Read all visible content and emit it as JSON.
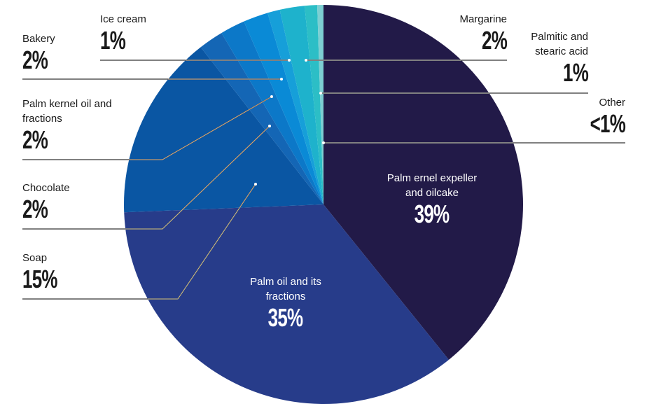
{
  "chart_data": {
    "type": "pie",
    "categories": [
      "Palm ernel expeller and oilcake",
      "Palm oil and its fractions",
      "Soap",
      "Chocolate",
      "Palm kernel oil and fractions",
      "Bakery",
      "Ice cream",
      "Margarine",
      "Palmitic and stearic acid",
      "Other"
    ],
    "values": [
      39,
      35,
      15,
      2,
      2,
      2,
      1,
      2,
      1,
      0.5
    ],
    "value_labels": [
      "39%",
      "35%",
      "15%",
      "2%",
      "2%",
      "2%",
      "1%",
      "2%",
      "1%",
      "<1%"
    ],
    "colors": [
      "#221a48",
      "#273c8a",
      "#0a56a3",
      "#1466b5",
      "#0c78c8",
      "#0a8ad6",
      "#169fd9",
      "#1eb2cc",
      "#2cbec6",
      "#7dcfd2"
    ]
  }
}
